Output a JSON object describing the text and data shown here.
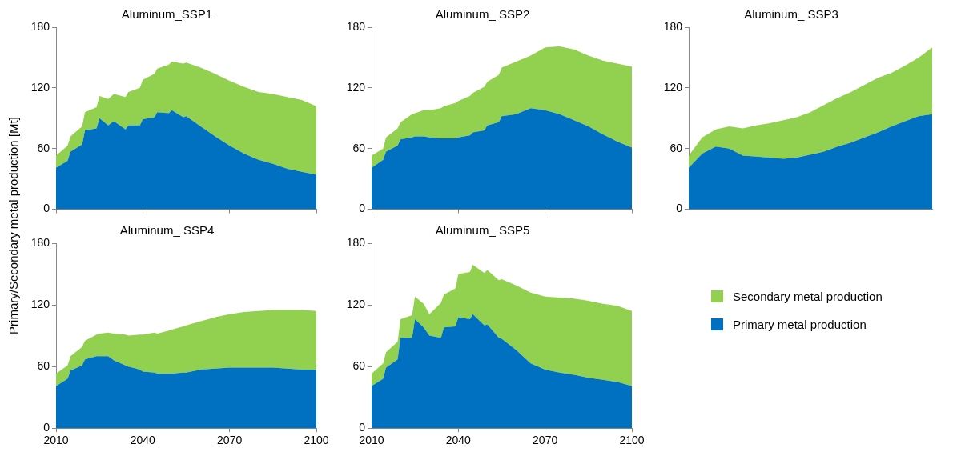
{
  "chart_data": [
    {
      "type": "area",
      "title": "Aluminum_SSP1",
      "ylabel": "Primary/Secondary metal production [Mt]",
      "stacked": true,
      "xlim": [
        2010,
        2100
      ],
      "xticks": [
        2010,
        2040,
        2070,
        2100
      ],
      "ylim": [
        0,
        180
      ],
      "yticks": [
        0,
        60,
        120,
        180
      ],
      "tick_labels": "y",
      "legend": false,
      "x": [
        2010,
        2014,
        2015,
        2019,
        2020,
        2024,
        2025,
        2028,
        2030,
        2034,
        2035,
        2039,
        2040,
        2044,
        2045,
        2049,
        2050,
        2054,
        2055,
        2060,
        2065,
        2070,
        2075,
        2080,
        2085,
        2090,
        2095,
        2100
      ],
      "series": [
        {
          "color": "#0070c0",
          "values": [
            41,
            48,
            57,
            64,
            78,
            80,
            90,
            83,
            87,
            79,
            83,
            83,
            89,
            91,
            96,
            95,
            98,
            91,
            92,
            82,
            72,
            63,
            55,
            49,
            45,
            40,
            37,
            34
          ]
        },
        {
          "color": "#92d050",
          "values": [
            12,
            15,
            15,
            18,
            18,
            21,
            22,
            26,
            27,
            32,
            33,
            37,
            39,
            43,
            43,
            48,
            48,
            53,
            53,
            58,
            62,
            64,
            66,
            67,
            69,
            71,
            71,
            68
          ]
        }
      ]
    },
    {
      "type": "area",
      "title": "Aluminum_ SSP2",
      "stacked": true,
      "xlim": [
        2010,
        2100
      ],
      "xticks": [
        2010,
        2040,
        2070,
        2100
      ],
      "ylim": [
        0,
        180
      ],
      "yticks": [
        0,
        60,
        120,
        180
      ],
      "tick_labels": "y",
      "legend": false,
      "x": [
        2010,
        2014,
        2015,
        2019,
        2020,
        2024,
        2025,
        2028,
        2030,
        2034,
        2035,
        2039,
        2040,
        2044,
        2045,
        2049,
        2050,
        2054,
        2055,
        2060,
        2065,
        2070,
        2075,
        2080,
        2085,
        2090,
        2095,
        2100
      ],
      "series": [
        {
          "color": "#0070c0",
          "values": [
            41,
            49,
            57,
            63,
            69,
            71,
            72,
            72,
            71,
            70,
            70,
            70,
            71,
            73,
            76,
            78,
            83,
            86,
            92,
            94,
            100,
            98,
            94,
            88,
            82,
            74,
            67,
            61
          ]
        },
        {
          "color": "#92d050",
          "values": [
            12,
            11,
            14,
            17,
            17,
            23,
            23,
            26,
            27,
            30,
            32,
            35,
            36,
            39,
            39,
            43,
            43,
            47,
            48,
            52,
            52,
            62,
            67,
            70,
            70,
            73,
            77,
            80
          ]
        }
      ]
    },
    {
      "type": "area",
      "title": "Aluminum_ SSP3",
      "stacked": true,
      "ylim": [
        0,
        180
      ],
      "yticks": [
        0,
        60,
        120,
        180
      ],
      "tick_labels": "y",
      "legend": false,
      "categories": [
        null,
        null,
        null,
        null,
        null,
        null,
        null,
        null,
        null,
        null,
        null,
        null,
        null,
        null,
        null,
        null,
        null,
        null,
        null
      ],
      "series": [
        {
          "color": "#0070c0",
          "values": [
            41,
            55,
            62,
            60,
            53,
            52,
            51,
            50,
            51,
            54,
            57,
            62,
            66,
            71,
            76,
            82,
            87,
            92,
            94
          ]
        },
        {
          "color": "#92d050",
          "values": [
            12,
            16,
            17,
            22,
            27,
            31,
            34,
            38,
            40,
            42,
            46,
            48,
            50,
            52,
            54,
            53,
            55,
            58,
            66
          ]
        }
      ]
    },
    {
      "type": "area",
      "title": "Aluminum_ SSP4",
      "stacked": true,
      "xlim": [
        2010,
        2100
      ],
      "xticks": [
        2010,
        2040,
        2070,
        2100
      ],
      "ylim": [
        0,
        180
      ],
      "yticks": [
        0,
        60,
        120,
        180
      ],
      "legend": false,
      "x": [
        2010,
        2014,
        2015,
        2019,
        2020,
        2024,
        2025,
        2028,
        2030,
        2034,
        2035,
        2039,
        2040,
        2044,
        2045,
        2049,
        2050,
        2054,
        2055,
        2060,
        2065,
        2070,
        2075,
        2080,
        2085,
        2090,
        2095,
        2100
      ],
      "series": [
        {
          "color": "#0070c0",
          "values": [
            41,
            48,
            56,
            61,
            67,
            70,
            70,
            70,
            66,
            61,
            60,
            57,
            55,
            54,
            53,
            53,
            53,
            54,
            54,
            57,
            58,
            59,
            59,
            59,
            59,
            58,
            57,
            57
          ]
        },
        {
          "color": "#92d050",
          "values": [
            12,
            13,
            14,
            18,
            18,
            21,
            22,
            23,
            26,
            30,
            30,
            34,
            36,
            39,
            39,
            42,
            43,
            45,
            46,
            47,
            50,
            52,
            54,
            55,
            56,
            57,
            58,
            57
          ]
        }
      ]
    },
    {
      "type": "area",
      "title": "Aluminum_ SSP5",
      "stacked": true,
      "xlim": [
        2010,
        2100
      ],
      "xticks": [
        2010,
        2040,
        2070,
        2100
      ],
      "ylim": [
        0,
        180
      ],
      "yticks": [
        0,
        60,
        120,
        180
      ],
      "legend": "right",
      "x": [
        2010,
        2014,
        2015,
        2019,
        2020,
        2024,
        2025,
        2028,
        2030,
        2034,
        2035,
        2039,
        2040,
        2044,
        2045,
        2049,
        2050,
        2054,
        2055,
        2060,
        2065,
        2070,
        2075,
        2080,
        2085,
        2090,
        2095,
        2100
      ],
      "series": [
        {
          "name": "Primary metal production",
          "color": "#0070c0",
          "values": [
            41,
            48,
            59,
            67,
            88,
            88,
            106,
            98,
            90,
            88,
            98,
            99,
            108,
            106,
            111,
            100,
            101,
            88,
            87,
            76,
            63,
            57,
            54,
            52,
            49,
            47,
            45,
            41
          ]
        },
        {
          "name": "Secondary metal production",
          "color": "#92d050",
          "values": [
            12,
            15,
            15,
            17,
            18,
            22,
            22,
            23,
            21,
            34,
            32,
            37,
            42,
            46,
            48,
            51,
            53,
            56,
            58,
            63,
            69,
            71,
            73,
            74,
            75,
            74,
            74,
            73
          ]
        }
      ]
    }
  ]
}
